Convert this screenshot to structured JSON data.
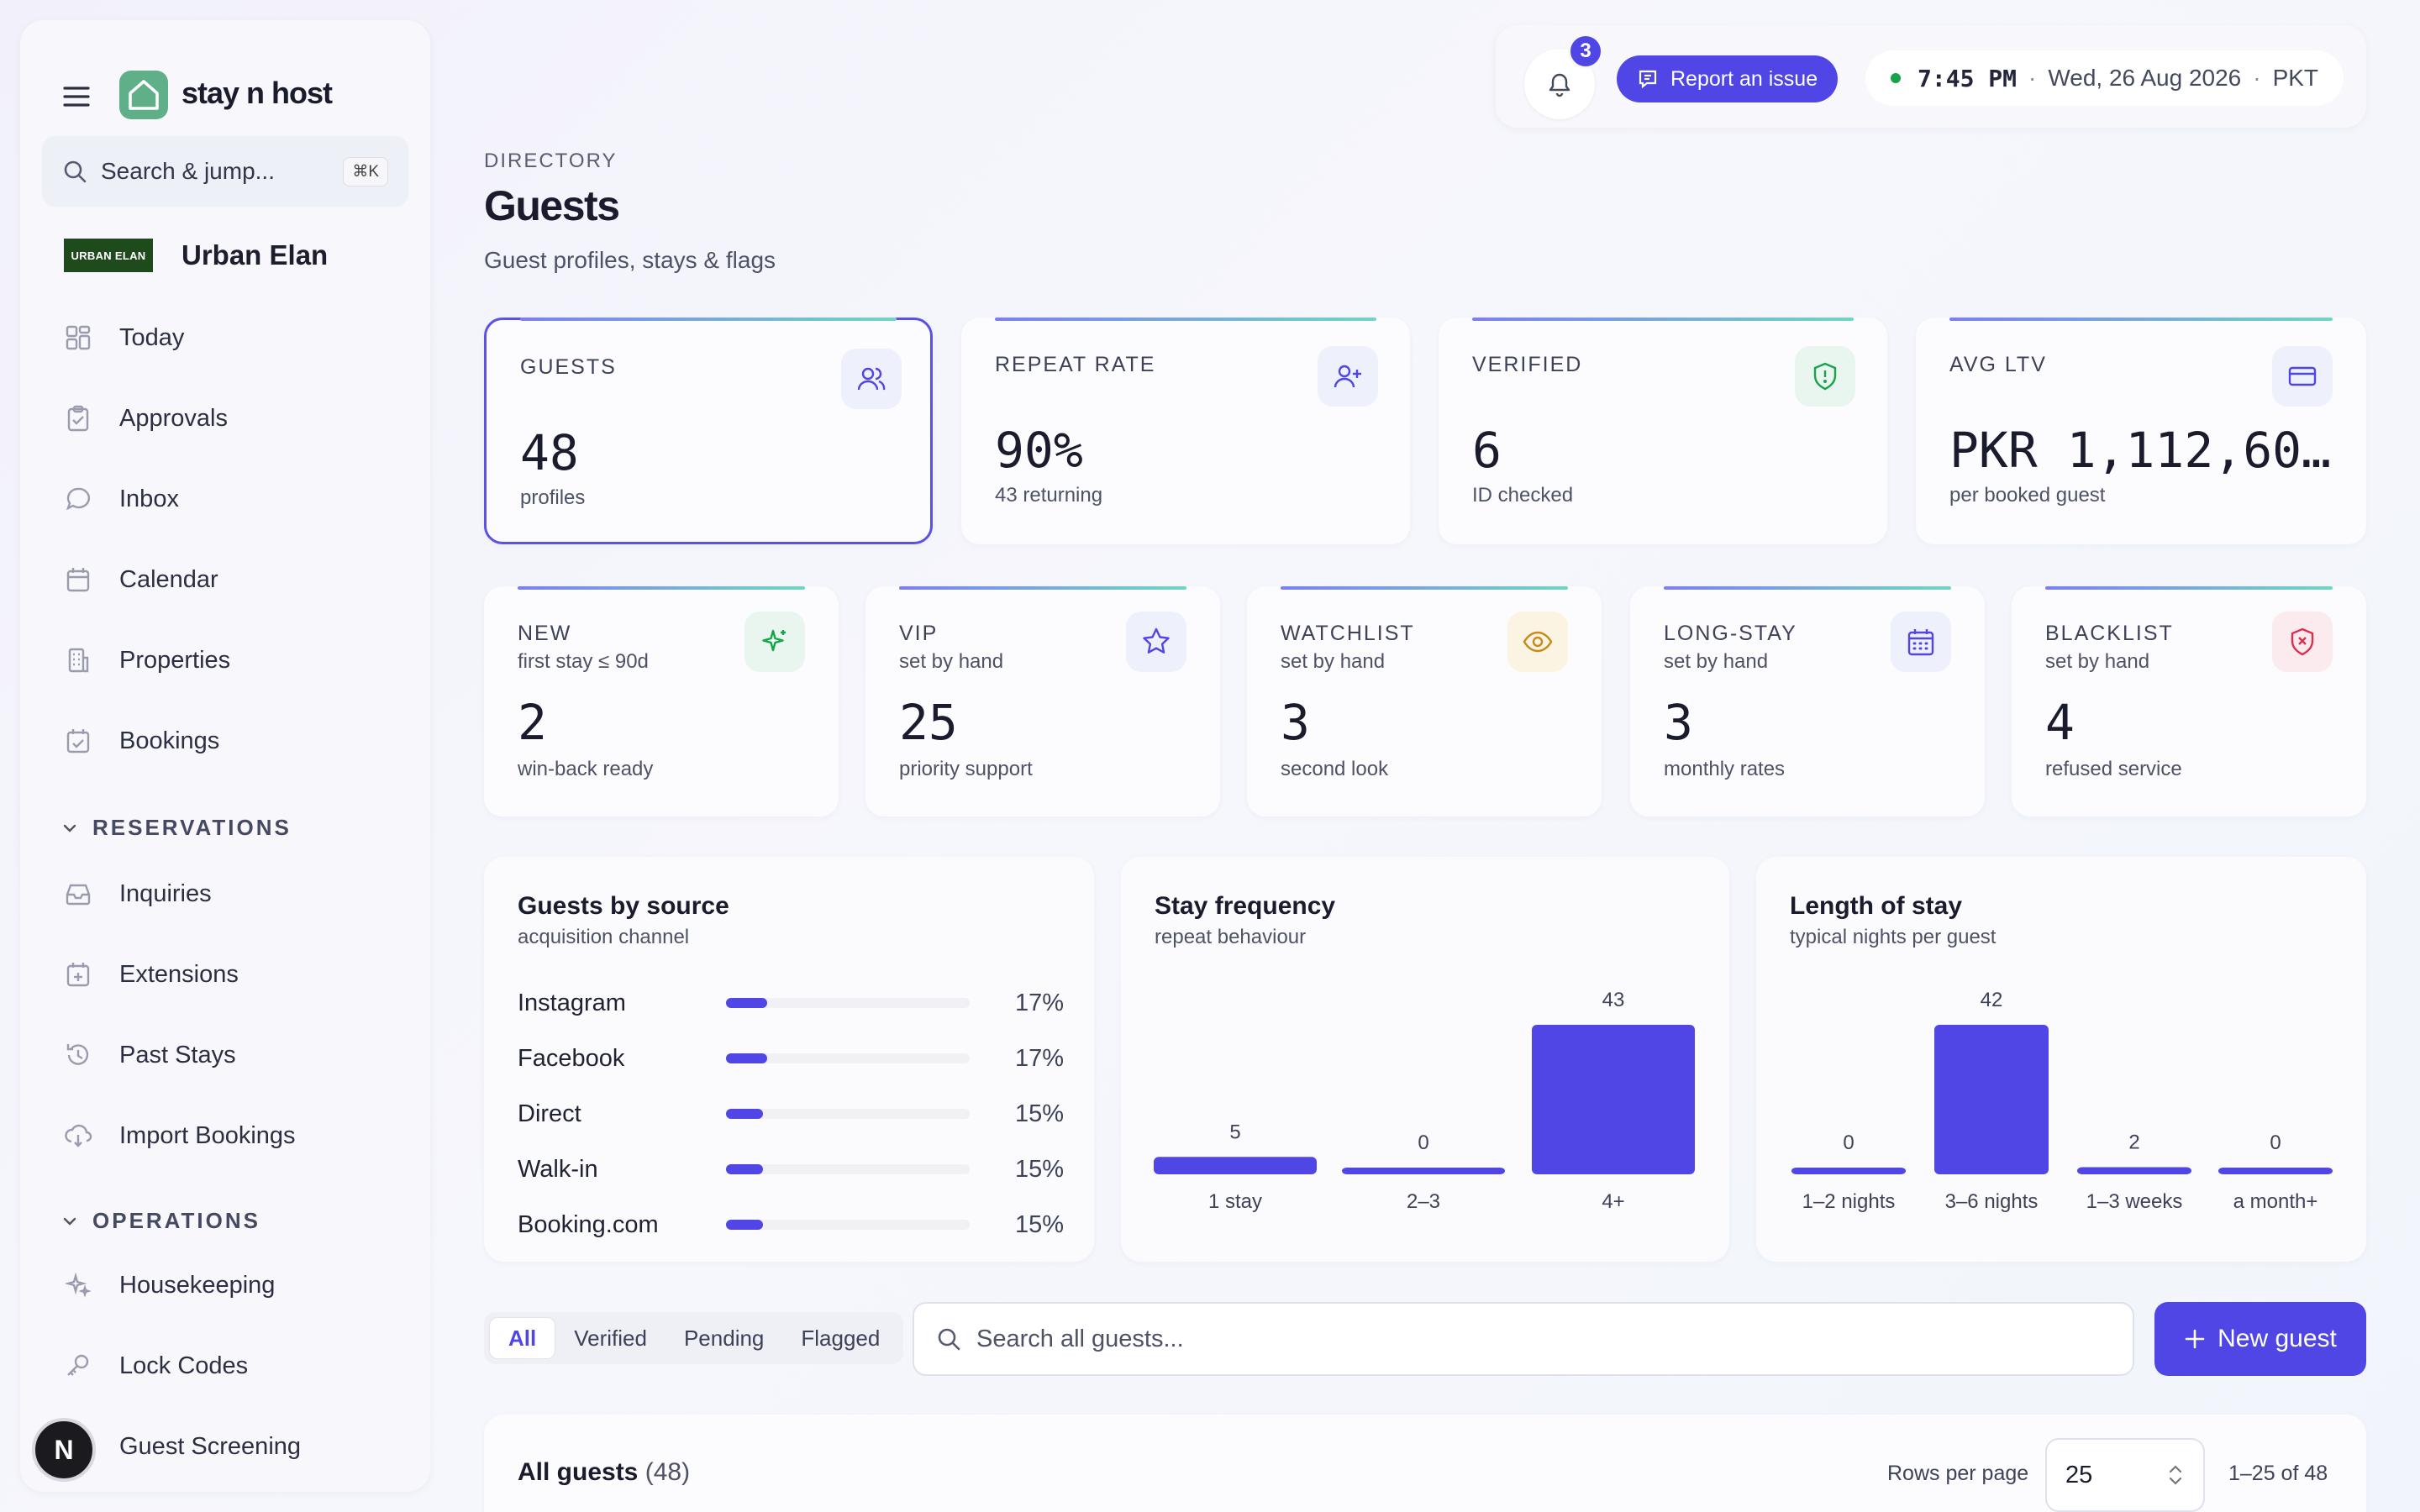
{
  "app": {
    "name": "stay n host"
  },
  "sidebar": {
    "search_placeholder": "Search & jump...",
    "search_shortcut": "⌘K",
    "org": {
      "badge": "URBAN ELAN",
      "name": "Urban Elan"
    },
    "items": [
      {
        "label": "Today",
        "icon": "dashboard-icon"
      },
      {
        "label": "Approvals",
        "icon": "clipboard-check-icon"
      },
      {
        "label": "Inbox",
        "icon": "chat-bubble-icon"
      },
      {
        "label": "Calendar",
        "icon": "calendar-icon"
      },
      {
        "label": "Properties",
        "icon": "building-icon"
      },
      {
        "label": "Bookings",
        "icon": "calendar-check-icon"
      }
    ],
    "sections": [
      {
        "title": "RESERVATIONS",
        "items": [
          {
            "label": "Inquiries",
            "icon": "inbox-tray-icon"
          },
          {
            "label": "Extensions",
            "icon": "calendar-plus-icon"
          },
          {
            "label": "Past Stays",
            "icon": "history-icon"
          },
          {
            "label": "Import Bookings",
            "icon": "cloud-download-icon"
          }
        ]
      },
      {
        "title": "OPERATIONS",
        "items": [
          {
            "label": "Housekeeping",
            "icon": "sparkles-icon"
          },
          {
            "label": "Lock Codes",
            "icon": "key-icon"
          },
          {
            "label": "Guest Screening",
            "icon": "screening-icon"
          }
        ]
      }
    ],
    "avatar_initial": "N"
  },
  "topbar": {
    "notifications_count": "3",
    "report_label": "Report an issue",
    "time": "7:45 PM",
    "date": "Wed, 26 Aug 2026",
    "tz": "PKT",
    "sep": "·"
  },
  "header": {
    "breadcrumb": "DIRECTORY",
    "title": "Guests",
    "subtitle": "Guest profiles, stays & flags"
  },
  "stats_top": [
    {
      "label": "GUESTS",
      "value": "48",
      "sub": "profiles",
      "icon": "users-icon",
      "selected": true
    },
    {
      "label": "REPEAT RATE",
      "value": "90%",
      "sub": "43 returning",
      "icon": "user-plus-icon"
    },
    {
      "label": "VERIFIED",
      "value": "6",
      "sub": "ID checked",
      "icon": "shield-alert-icon"
    },
    {
      "label": "AVG LTV",
      "value": "PKR 1,112,60...",
      "sub": "per booked guest",
      "icon": "credit-card-icon"
    }
  ],
  "stats_flags": [
    {
      "label": "NEW",
      "desc": "first stay ≤ 90d",
      "value": "2",
      "sub": "win-back ready",
      "icon": "sparkle-icon"
    },
    {
      "label": "VIP",
      "desc": "set by hand",
      "value": "25",
      "sub": "priority support",
      "icon": "star-icon"
    },
    {
      "label": "WATCHLIST",
      "desc": "set by hand",
      "value": "3",
      "sub": "second look",
      "icon": "eye-icon"
    },
    {
      "label": "LONG-STAY",
      "desc": "set by hand",
      "value": "3",
      "sub": "monthly rates",
      "icon": "calendar-grid-icon"
    },
    {
      "label": "BLACKLIST",
      "desc": "set by hand",
      "value": "4",
      "sub": "refused service",
      "icon": "shield-x-icon"
    }
  ],
  "colors": {
    "accent": "#4f46e5",
    "success": "#16a34a",
    "danger": "#dc2f4f",
    "warning": "#c58a17"
  },
  "chart_data": [
    {
      "type": "bar",
      "title": "Guests by source",
      "subtitle": "acquisition channel",
      "categories": [
        "Instagram",
        "Facebook",
        "Direct",
        "Walk-in",
        "Booking.com"
      ],
      "values": [
        17,
        17,
        15,
        15,
        15
      ],
      "value_labels": [
        "17%",
        "17%",
        "15%",
        "15%",
        "15%"
      ],
      "unit": "%",
      "orientation": "horizontal",
      "xlim": [
        0,
        100
      ]
    },
    {
      "type": "bar",
      "title": "Stay frequency",
      "subtitle": "repeat behaviour",
      "categories": [
        "1 stay",
        "2–3",
        "4+"
      ],
      "values": [
        5,
        0,
        43
      ],
      "ylim": [
        0,
        43
      ]
    },
    {
      "type": "bar",
      "title": "Length of stay",
      "subtitle": "typical nights per guest",
      "categories": [
        "1–2 nights",
        "3–6 nights",
        "1–3 weeks",
        "a month+"
      ],
      "values": [
        0,
        42,
        2,
        0
      ],
      "ylim": [
        0,
        42
      ]
    }
  ],
  "filters": {
    "tabs": [
      {
        "label": "All",
        "active": true
      },
      {
        "label": "Verified"
      },
      {
        "label": "Pending"
      },
      {
        "label": "Flagged"
      }
    ],
    "search_placeholder": "Search all guests...",
    "new_label": "New guest"
  },
  "table": {
    "title": "All guests",
    "count": "(48)",
    "rows_per_page_label": "Rows per page",
    "rows_per_page": "25",
    "range": "1–25 of 48"
  }
}
